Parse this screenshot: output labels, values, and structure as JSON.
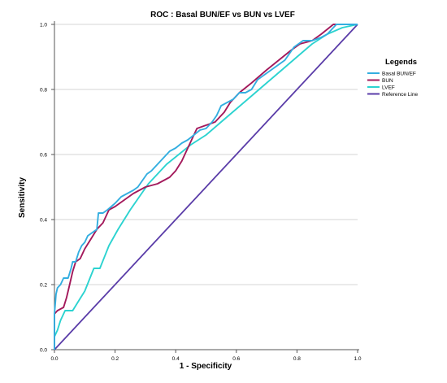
{
  "chart_data": {
    "type": "line",
    "title": "ROC : Basal BUN/EF vs BUN vs LVEF",
    "xlabel": "1 - Specificity",
    "ylabel": "Sensitivity",
    "xlim": [
      0,
      1
    ],
    "ylim": [
      0,
      1
    ],
    "xticks": [
      "0.0",
      "0.2",
      "0.4",
      "0.6",
      "0.8",
      "1.0"
    ],
    "yticks": [
      "0.0",
      "0.2",
      "0.4",
      "0.6",
      "0.8",
      "1.0"
    ],
    "grid": "horizontal",
    "legend_title": "Legends",
    "legend_position": "right",
    "series": [
      {
        "name": "Basal BUN/EF",
        "color": "#33aee0",
        "points": [
          [
            0,
            0
          ],
          [
            0,
            0.11
          ],
          [
            0.005,
            0.17
          ],
          [
            0.01,
            0.19
          ],
          [
            0.02,
            0.2
          ],
          [
            0.03,
            0.22
          ],
          [
            0.045,
            0.22
          ],
          [
            0.055,
            0.25
          ],
          [
            0.06,
            0.27
          ],
          [
            0.07,
            0.27
          ],
          [
            0.08,
            0.3
          ],
          [
            0.09,
            0.32
          ],
          [
            0.1,
            0.33
          ],
          [
            0.11,
            0.35
          ],
          [
            0.125,
            0.36
          ],
          [
            0.14,
            0.37
          ],
          [
            0.145,
            0.42
          ],
          [
            0.16,
            0.42
          ],
          [
            0.175,
            0.43
          ],
          [
            0.2,
            0.45
          ],
          [
            0.22,
            0.47
          ],
          [
            0.24,
            0.48
          ],
          [
            0.26,
            0.49
          ],
          [
            0.275,
            0.5
          ],
          [
            0.29,
            0.52
          ],
          [
            0.305,
            0.54
          ],
          [
            0.32,
            0.55
          ],
          [
            0.34,
            0.57
          ],
          [
            0.36,
            0.59
          ],
          [
            0.38,
            0.61
          ],
          [
            0.4,
            0.62
          ],
          [
            0.42,
            0.635
          ],
          [
            0.44,
            0.645
          ],
          [
            0.46,
            0.66
          ],
          [
            0.48,
            0.675
          ],
          [
            0.5,
            0.68
          ],
          [
            0.52,
            0.7
          ],
          [
            0.535,
            0.72
          ],
          [
            0.55,
            0.75
          ],
          [
            0.57,
            0.76
          ],
          [
            0.59,
            0.77
          ],
          [
            0.61,
            0.79
          ],
          [
            0.63,
            0.79
          ],
          [
            0.65,
            0.8
          ],
          [
            0.67,
            0.83
          ],
          [
            0.7,
            0.85
          ],
          [
            0.73,
            0.87
          ],
          [
            0.76,
            0.89
          ],
          [
            0.79,
            0.93
          ],
          [
            0.82,
            0.95
          ],
          [
            0.85,
            0.95
          ],
          [
            0.88,
            0.96
          ],
          [
            0.9,
            0.97
          ],
          [
            0.93,
            1.0
          ],
          [
            1.0,
            1.0
          ]
        ]
      },
      {
        "name": "BUN",
        "color": "#a3195b",
        "points": [
          [
            0,
            0
          ],
          [
            0,
            0.11
          ],
          [
            0.01,
            0.12
          ],
          [
            0.03,
            0.13
          ],
          [
            0.04,
            0.16
          ],
          [
            0.05,
            0.2
          ],
          [
            0.06,
            0.24
          ],
          [
            0.07,
            0.27
          ],
          [
            0.085,
            0.28
          ],
          [
            0.1,
            0.31
          ],
          [
            0.12,
            0.34
          ],
          [
            0.14,
            0.37
          ],
          [
            0.16,
            0.39
          ],
          [
            0.18,
            0.43
          ],
          [
            0.2,
            0.44
          ],
          [
            0.23,
            0.46
          ],
          [
            0.26,
            0.48
          ],
          [
            0.3,
            0.5
          ],
          [
            0.34,
            0.51
          ],
          [
            0.38,
            0.53
          ],
          [
            0.4,
            0.55
          ],
          [
            0.42,
            0.58
          ],
          [
            0.44,
            0.62
          ],
          [
            0.455,
            0.65
          ],
          [
            0.47,
            0.68
          ],
          [
            0.5,
            0.69
          ],
          [
            0.53,
            0.7
          ],
          [
            0.56,
            0.73
          ],
          [
            0.58,
            0.76
          ],
          [
            0.61,
            0.79
          ],
          [
            0.65,
            0.82
          ],
          [
            0.7,
            0.86
          ],
          [
            0.74,
            0.89
          ],
          [
            0.78,
            0.92
          ],
          [
            0.81,
            0.94
          ],
          [
            0.85,
            0.95
          ],
          [
            0.88,
            0.97
          ],
          [
            0.92,
            1.0
          ],
          [
            1.0,
            1.0
          ]
        ]
      },
      {
        "name": "LVEF",
        "color": "#2cd3d0",
        "points": [
          [
            0,
            0
          ],
          [
            0,
            0.04
          ],
          [
            0.01,
            0.06
          ],
          [
            0.02,
            0.09
          ],
          [
            0.035,
            0.12
          ],
          [
            0.06,
            0.12
          ],
          [
            0.08,
            0.15
          ],
          [
            0.1,
            0.18
          ],
          [
            0.13,
            0.25
          ],
          [
            0.15,
            0.25
          ],
          [
            0.18,
            0.32
          ],
          [
            0.21,
            0.37
          ],
          [
            0.25,
            0.43
          ],
          [
            0.28,
            0.47
          ],
          [
            0.31,
            0.51
          ],
          [
            0.34,
            0.54
          ],
          [
            0.37,
            0.57
          ],
          [
            0.41,
            0.6
          ],
          [
            0.45,
            0.63
          ],
          [
            0.5,
            0.66
          ],
          [
            0.55,
            0.7
          ],
          [
            0.6,
            0.74
          ],
          [
            0.65,
            0.78
          ],
          [
            0.7,
            0.82
          ],
          [
            0.75,
            0.86
          ],
          [
            0.8,
            0.9
          ],
          [
            0.85,
            0.94
          ],
          [
            0.9,
            0.97
          ],
          [
            0.95,
            0.99
          ],
          [
            1.0,
            1.0
          ]
        ]
      },
      {
        "name": "Reference Line",
        "color": "#5a3ca8",
        "points": [
          [
            0,
            0
          ],
          [
            1,
            1
          ]
        ]
      }
    ]
  }
}
